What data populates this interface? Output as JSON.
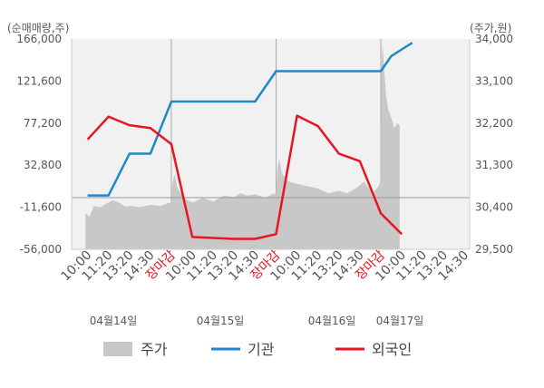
{
  "chart_data": {
    "type": "line",
    "left_axis": {
      "label": "(순매매량,주)",
      "ticks": [
        "166,000",
        "121,600",
        "77,200",
        "32,800",
        "-11,600",
        "-56,000"
      ],
      "range": [
        -56000,
        166000
      ]
    },
    "right_axis": {
      "label": "(주가,원)",
      "ticks": [
        "34,000",
        "33,100",
        "32,200",
        "31,300",
        "30,400",
        "29,500"
      ],
      "range": [
        29500,
        34000
      ]
    },
    "x_ticks": [
      {
        "label": "10:00",
        "highlight": false
      },
      {
        "label": "11:20",
        "highlight": false
      },
      {
        "label": "13:20",
        "highlight": false
      },
      {
        "label": "14:30",
        "highlight": false
      },
      {
        "label": "장마감",
        "highlight": true
      },
      {
        "label": "10:00",
        "highlight": false
      },
      {
        "label": "11:20",
        "highlight": false
      },
      {
        "label": "13:20",
        "highlight": false
      },
      {
        "label": "14:30",
        "highlight": false
      },
      {
        "label": "장마감",
        "highlight": true
      },
      {
        "label": "10:00",
        "highlight": false
      },
      {
        "label": "11:20",
        "highlight": false
      },
      {
        "label": "13:20",
        "highlight": false
      },
      {
        "label": "14:30",
        "highlight": false
      },
      {
        "label": "장마감",
        "highlight": true
      },
      {
        "label": "10:00",
        "highlight": false
      },
      {
        "label": "11:20",
        "highlight": false
      },
      {
        "label": "13:20",
        "highlight": false
      },
      {
        "label": "14:30",
        "highlight": false
      }
    ],
    "dates": [
      "04월14일",
      "04월15일",
      "04월16일",
      "04월17일"
    ],
    "legend": [
      "주가",
      "기관",
      "외국인"
    ],
    "colors": {
      "price": "#c8c8c8",
      "institution": "#1f88c8",
      "foreign": "#e8141f"
    },
    "series": [
      {
        "name": "기관",
        "color": "#1f88c8",
        "x": [
          1,
          2,
          3,
          4,
          5,
          6,
          7,
          8,
          9,
          10,
          11,
          12,
          13,
          14,
          15,
          15.5,
          16,
          16.5
        ],
        "values": [
          800,
          800,
          45000,
          45000,
          100000,
          100000,
          100000,
          100000,
          100000,
          132000,
          132000,
          132000,
          132000,
          132000,
          132000,
          148000,
          155000,
          162000
        ]
      },
      {
        "name": "외국인",
        "color": "#e8141f",
        "x": [
          1,
          2,
          3,
          4,
          5,
          6,
          7,
          8,
          9,
          10,
          11,
          12,
          13,
          14,
          15,
          16
        ],
        "values": [
          60000,
          84000,
          75000,
          72000,
          55000,
          -43000,
          -44000,
          -45000,
          -45000,
          -40000,
          85000,
          74000,
          45000,
          37000,
          -18000,
          -40000
        ]
      },
      {
        "name": "주가",
        "color": "#c8c8c8",
        "x": [
          0.9,
          1.1,
          1.3,
          1.6,
          1.9,
          2.2,
          2.5,
          2.8,
          3.1,
          3.5,
          4.0,
          4.5,
          4.9,
          5.0,
          5.05,
          5.15,
          5.3,
          5.6,
          6.0,
          6.5,
          7.0,
          7.5,
          8.0,
          8.3,
          8.6,
          9.0,
          9.5,
          9.9,
          10.0,
          10.05,
          10.15,
          10.3,
          10.6,
          11.0,
          11.5,
          12.0,
          12.5,
          13.0,
          13.4,
          13.8,
          14.2,
          14.6,
          14.9,
          15.0,
          15.02,
          15.08,
          15.15,
          15.25,
          15.35,
          15.5,
          15.65,
          15.8,
          15.9
        ],
        "values": [
          30270,
          30200,
          30430,
          30400,
          30480,
          30550,
          30500,
          30420,
          30430,
          30400,
          30450,
          30430,
          30500,
          30480,
          30900,
          31100,
          30800,
          30600,
          30500,
          30600,
          30520,
          30650,
          30620,
          30700,
          30650,
          30680,
          30600,
          30700,
          30650,
          31200,
          31450,
          31100,
          30950,
          30900,
          30850,
          30800,
          30700,
          30750,
          30700,
          30800,
          30950,
          30700,
          30850,
          31000,
          33300,
          33900,
          33400,
          32800,
          32500,
          32300,
          32100,
          32200,
          32150
        ]
      }
    ],
    "grid": true,
    "legend_position": "bottom"
  }
}
